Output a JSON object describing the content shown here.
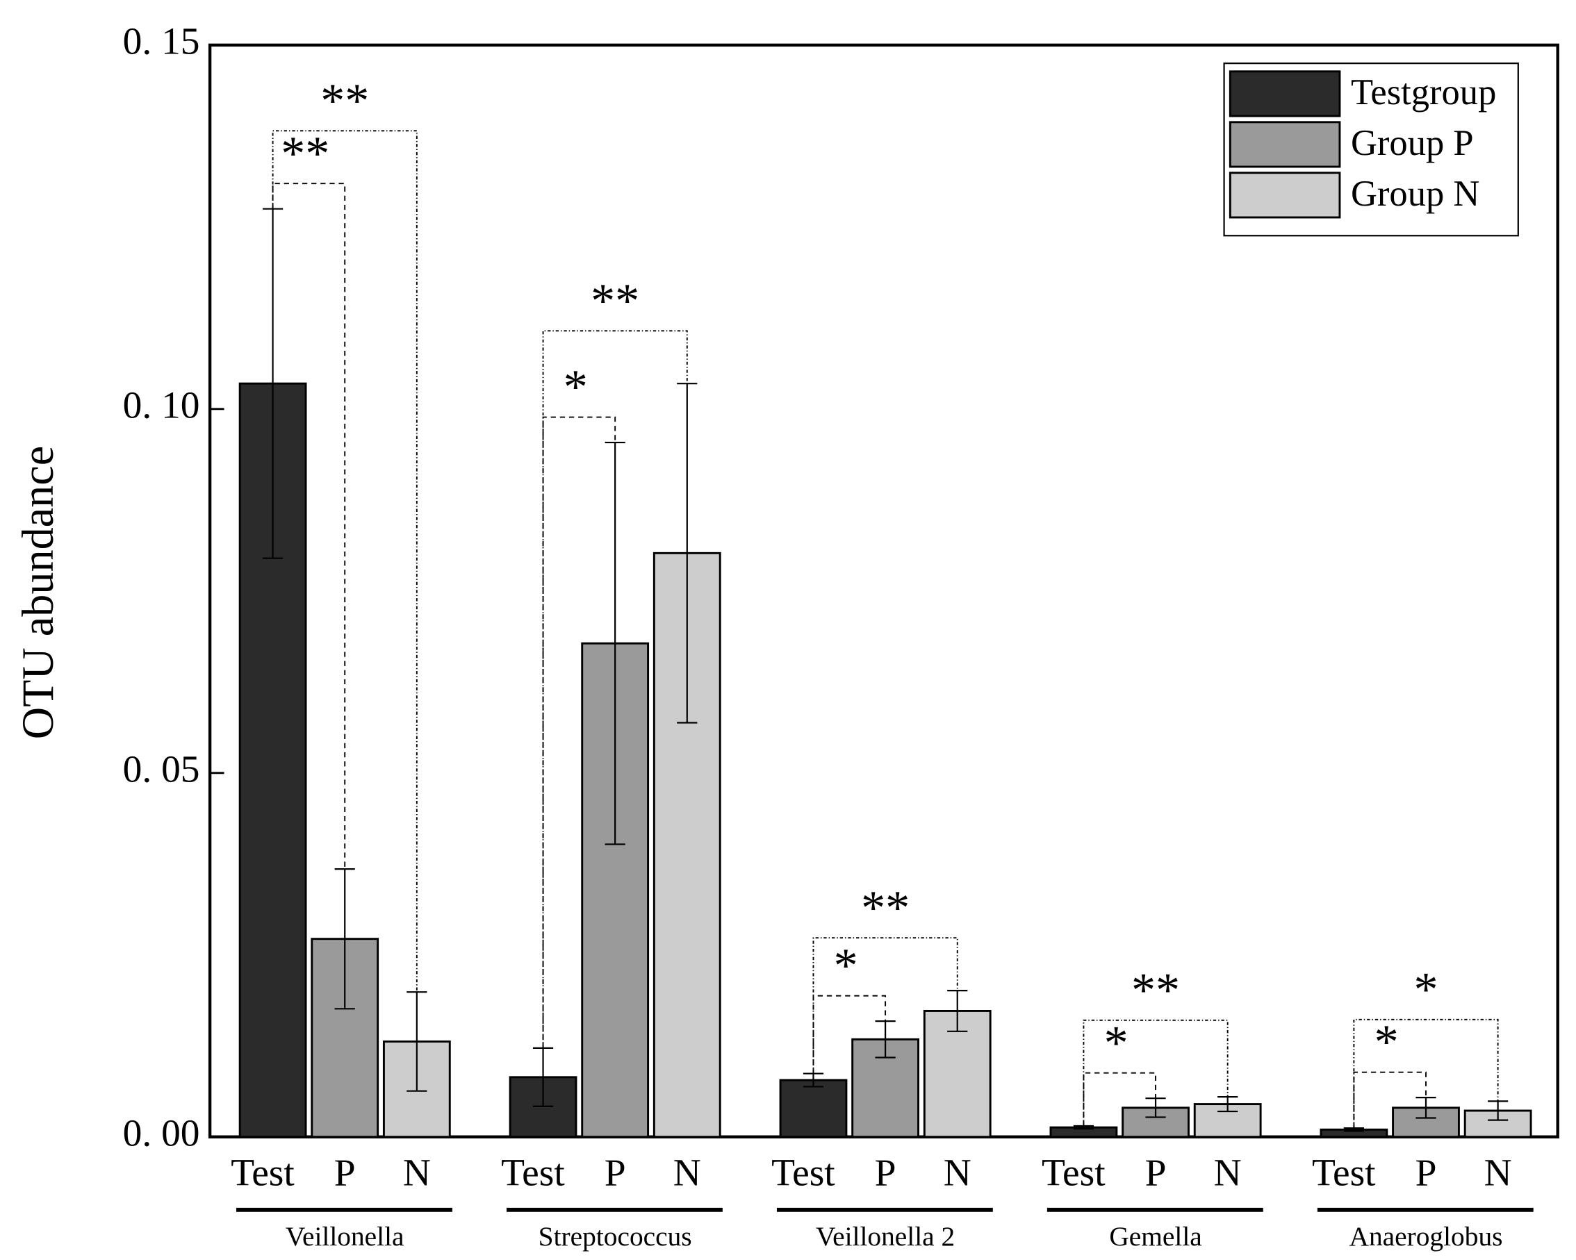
{
  "chart_data": {
    "type": "bar",
    "ylabel": "OTU abundance",
    "categories": [
      "Veillonella",
      "Streptococcus",
      "Veillonella 2",
      "Gemella",
      "Anaeroglobus"
    ],
    "bar_labels": [
      "Test",
      "P",
      "N"
    ],
    "series": [
      {
        "name": "Testgroup",
        "color": "#2b2b2b",
        "values": [
          0.1035,
          0.0082,
          0.0078,
          0.0013,
          0.001
        ],
        "errors": [
          0.024,
          0.004,
          0.0009,
          0.0002,
          0.0002
        ]
      },
      {
        "name": "Group P",
        "color": "#9a9a9a",
        "values": [
          0.0272,
          0.0678,
          0.0134,
          0.004,
          0.004
        ],
        "errors": [
          0.0096,
          0.0276,
          0.0025,
          0.0013,
          0.0014
        ]
      },
      {
        "name": "Group N",
        "color": "#cdcdcd",
        "values": [
          0.0131,
          0.0802,
          0.0173,
          0.0045,
          0.0036
        ],
        "errors": [
          0.0068,
          0.0233,
          0.0028,
          0.001,
          0.0013
        ]
      }
    ],
    "annotations": [
      {
        "category": "Veillonella",
        "pair": [
          "Test",
          "P"
        ],
        "label": "**"
      },
      {
        "category": "Veillonella",
        "pair": [
          "Test",
          "N"
        ],
        "label": "**"
      },
      {
        "category": "Streptococcus",
        "pair": [
          "Test",
          "P"
        ],
        "label": "*"
      },
      {
        "category": "Streptococcus",
        "pair": [
          "Test",
          "N"
        ],
        "label": "**"
      },
      {
        "category": "Veillonella 2",
        "pair": [
          "Test",
          "P"
        ],
        "label": "*"
      },
      {
        "category": "Veillonella 2",
        "pair": [
          "Test",
          "N"
        ],
        "label": "**"
      },
      {
        "category": "Gemella",
        "pair": [
          "Test",
          "P"
        ],
        "label": "*"
      },
      {
        "category": "Gemella",
        "pair": [
          "Test",
          "N"
        ],
        "label": "**"
      },
      {
        "category": "Anaeroglobus",
        "pair": [
          "Test",
          "P"
        ],
        "label": "*"
      },
      {
        "category": "Anaeroglobus",
        "pair": [
          "Test",
          "N"
        ],
        "label": "*"
      }
    ],
    "ylim": [
      0,
      0.15
    ],
    "yticks": [
      {
        "value": 0,
        "label": "0. 00"
      },
      {
        "value": 0.05,
        "label": "0. 05"
      },
      {
        "value": 0.1,
        "label": "0. 10"
      },
      {
        "value": 0.15,
        "label": "0. 15"
      }
    ],
    "legend": "upper right",
    "grid": false
  }
}
